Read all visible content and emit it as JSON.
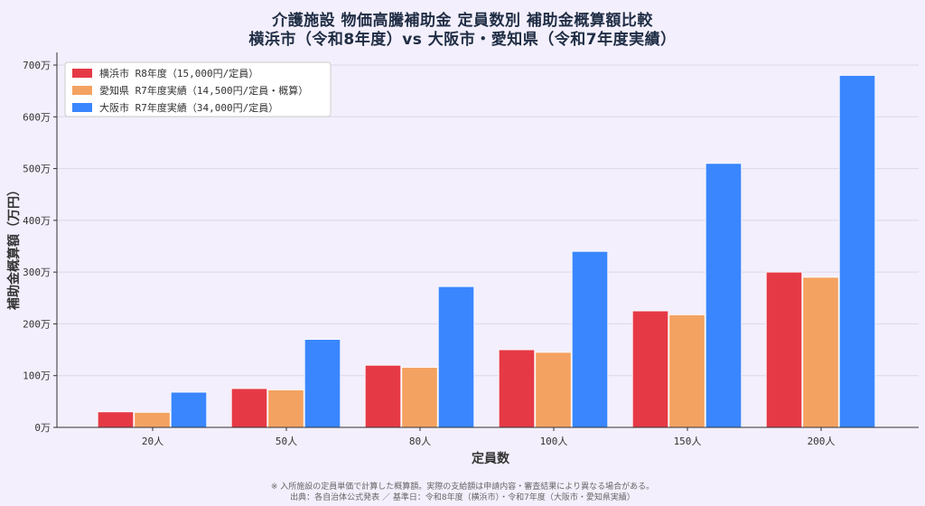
{
  "title_line1": "介護施設 物価高騰補助金 定員数別 補助金概算額比較",
  "title_line2": "横浜市（令和8年度）vs 大阪市・愛知県（令和7年度実績）",
  "footnote_line1": "※ 入所施設の定員単価で計算した概算額。実際の支給額は申請内容・審査結果により異なる場合がある。",
  "footnote_line2": "出典：各自治体公式発表 ／ 基準日：令和8年度（横浜市）・令和7年度（大阪市・愛知県実績）",
  "chart_data": {
    "type": "bar",
    "xlabel": "定員数",
    "ylabel": "補助金概算額（万円）",
    "categories": [
      "20人",
      "50人",
      "80人",
      "100人",
      "150人",
      "200人"
    ],
    "ylim": [
      0,
      700
    ],
    "yticks": [
      0,
      100,
      200,
      300,
      400,
      500,
      600,
      700
    ],
    "ytick_labels": [
      "0万",
      "100万",
      "200万",
      "300万",
      "400万",
      "500万",
      "600万",
      "700万"
    ],
    "grid": true,
    "legend_position": "top-left",
    "series": [
      {
        "name": "横浜市 R8年度（15,000円/定員）",
        "color": "#e63946",
        "values": [
          30,
          75,
          120,
          150,
          225,
          300
        ]
      },
      {
        "name": "愛知県 R7年度実績（14,500円/定員・概算）",
        "color": "#f4a261",
        "values": [
          29,
          72.5,
          116,
          145,
          217.5,
          290
        ]
      },
      {
        "name": "大阪市 R7年度実績（34,000円/定員）",
        "color": "#3a86ff",
        "values": [
          68,
          170,
          272,
          340,
          510,
          680
        ]
      }
    ]
  }
}
